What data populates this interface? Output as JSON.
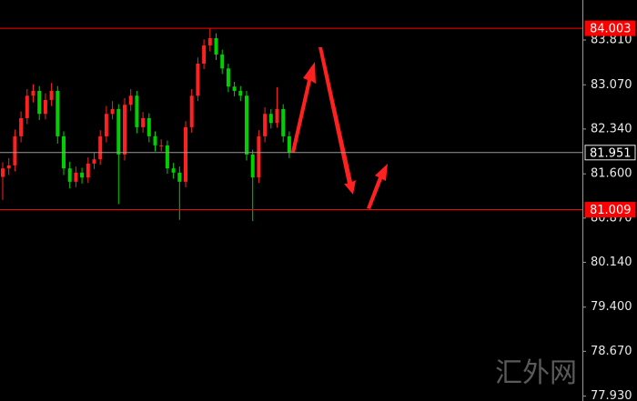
{
  "chart_data": {
    "type": "candlestick",
    "open": [
      81.55,
      81.69,
      81.74,
      82.22,
      82.52,
      82.89,
      82.97,
      82.59,
      82.82,
      82.97,
      82.22,
      81.69,
      81.47,
      81.62,
      81.54,
      81.77,
      81.84,
      82.22,
      82.59,
      82.67,
      81.92,
      82.74,
      82.89,
      82.37,
      82.52,
      82.22,
      82.07,
      82.07,
      81.69,
      81.62,
      81.47,
      82.37,
      82.89,
      83.42,
      83.72,
      83.84,
      83.57,
      83.34,
      83.04,
      82.97,
      82.89,
      81.92,
      81.54,
      82.22,
      82.59,
      82.44,
      82.67,
      82.22
    ],
    "high": [
      81.79,
      81.86,
      82.33,
      82.63,
      83.0,
      83.08,
      83.05,
      82.93,
      83.1,
      83.05,
      82.3,
      81.8,
      81.72,
      81.7,
      81.87,
      81.95,
      82.32,
      82.72,
      82.8,
      82.75,
      82.85,
      83.0,
      82.97,
      82.62,
      82.6,
      82.3,
      82.17,
      82.15,
      81.78,
      81.72,
      82.47,
      83.0,
      83.52,
      83.82,
      84.0,
      83.92,
      83.65,
      83.42,
      83.12,
      83.05,
      82.97,
      82.0,
      82.32,
      82.7,
      82.67,
      83.03,
      82.75,
      82.3
    ],
    "low": [
      81.17,
      81.58,
      81.64,
      82.12,
      82.42,
      82.78,
      82.49,
      82.5,
      82.72,
      82.1,
      81.58,
      81.36,
      81.38,
      81.44,
      81.45,
      81.68,
      81.75,
      82.12,
      82.5,
      81.1,
      81.82,
      82.64,
      82.27,
      82.28,
      82.12,
      81.97,
      81.97,
      81.6,
      81.52,
      80.84,
      81.38,
      82.28,
      82.8,
      83.33,
      83.62,
      83.48,
      83.25,
      82.95,
      82.88,
      82.8,
      81.82,
      80.82,
      81.45,
      82.12,
      82.35,
      82.36,
      82.12,
      81.86
    ],
    "close": [
      81.69,
      81.74,
      82.22,
      82.52,
      82.89,
      82.97,
      82.59,
      82.82,
      82.97,
      82.22,
      81.69,
      81.47,
      81.62,
      81.54,
      81.77,
      81.84,
      82.22,
      82.59,
      82.67,
      81.92,
      82.74,
      82.89,
      82.37,
      82.52,
      82.22,
      82.07,
      82.07,
      81.69,
      81.62,
      81.47,
      82.37,
      82.89,
      83.42,
      83.72,
      83.84,
      83.57,
      83.34,
      83.04,
      82.97,
      82.89,
      81.92,
      81.54,
      82.22,
      82.59,
      82.44,
      82.67,
      82.22,
      81.951
    ],
    "up_color": "#ff2020",
    "down_color": "#00d000",
    "ylim": [
      77.85,
      84.47
    ],
    "yticks": [
      {
        "value": 83.81,
        "label": "83.810"
      },
      {
        "value": 83.07,
        "label": "83.070"
      },
      {
        "value": 82.34,
        "label": "82.340"
      },
      {
        "value": 81.6,
        "label": "81.600"
      },
      {
        "value": 80.87,
        "label": "80.870"
      },
      {
        "value": 80.14,
        "label": "80.140"
      },
      {
        "value": 79.4,
        "label": "79.400"
      },
      {
        "value": 78.67,
        "label": "78.670"
      },
      {
        "value": 77.93,
        "label": "77.930"
      }
    ],
    "levels": [
      {
        "value": 84.003,
        "color": "#ff0000"
      },
      {
        "value": 81.951,
        "color": "#9a9a9a"
      },
      {
        "value": 81.009,
        "color": "#ff0000"
      }
    ],
    "watermark": "汇外网"
  }
}
